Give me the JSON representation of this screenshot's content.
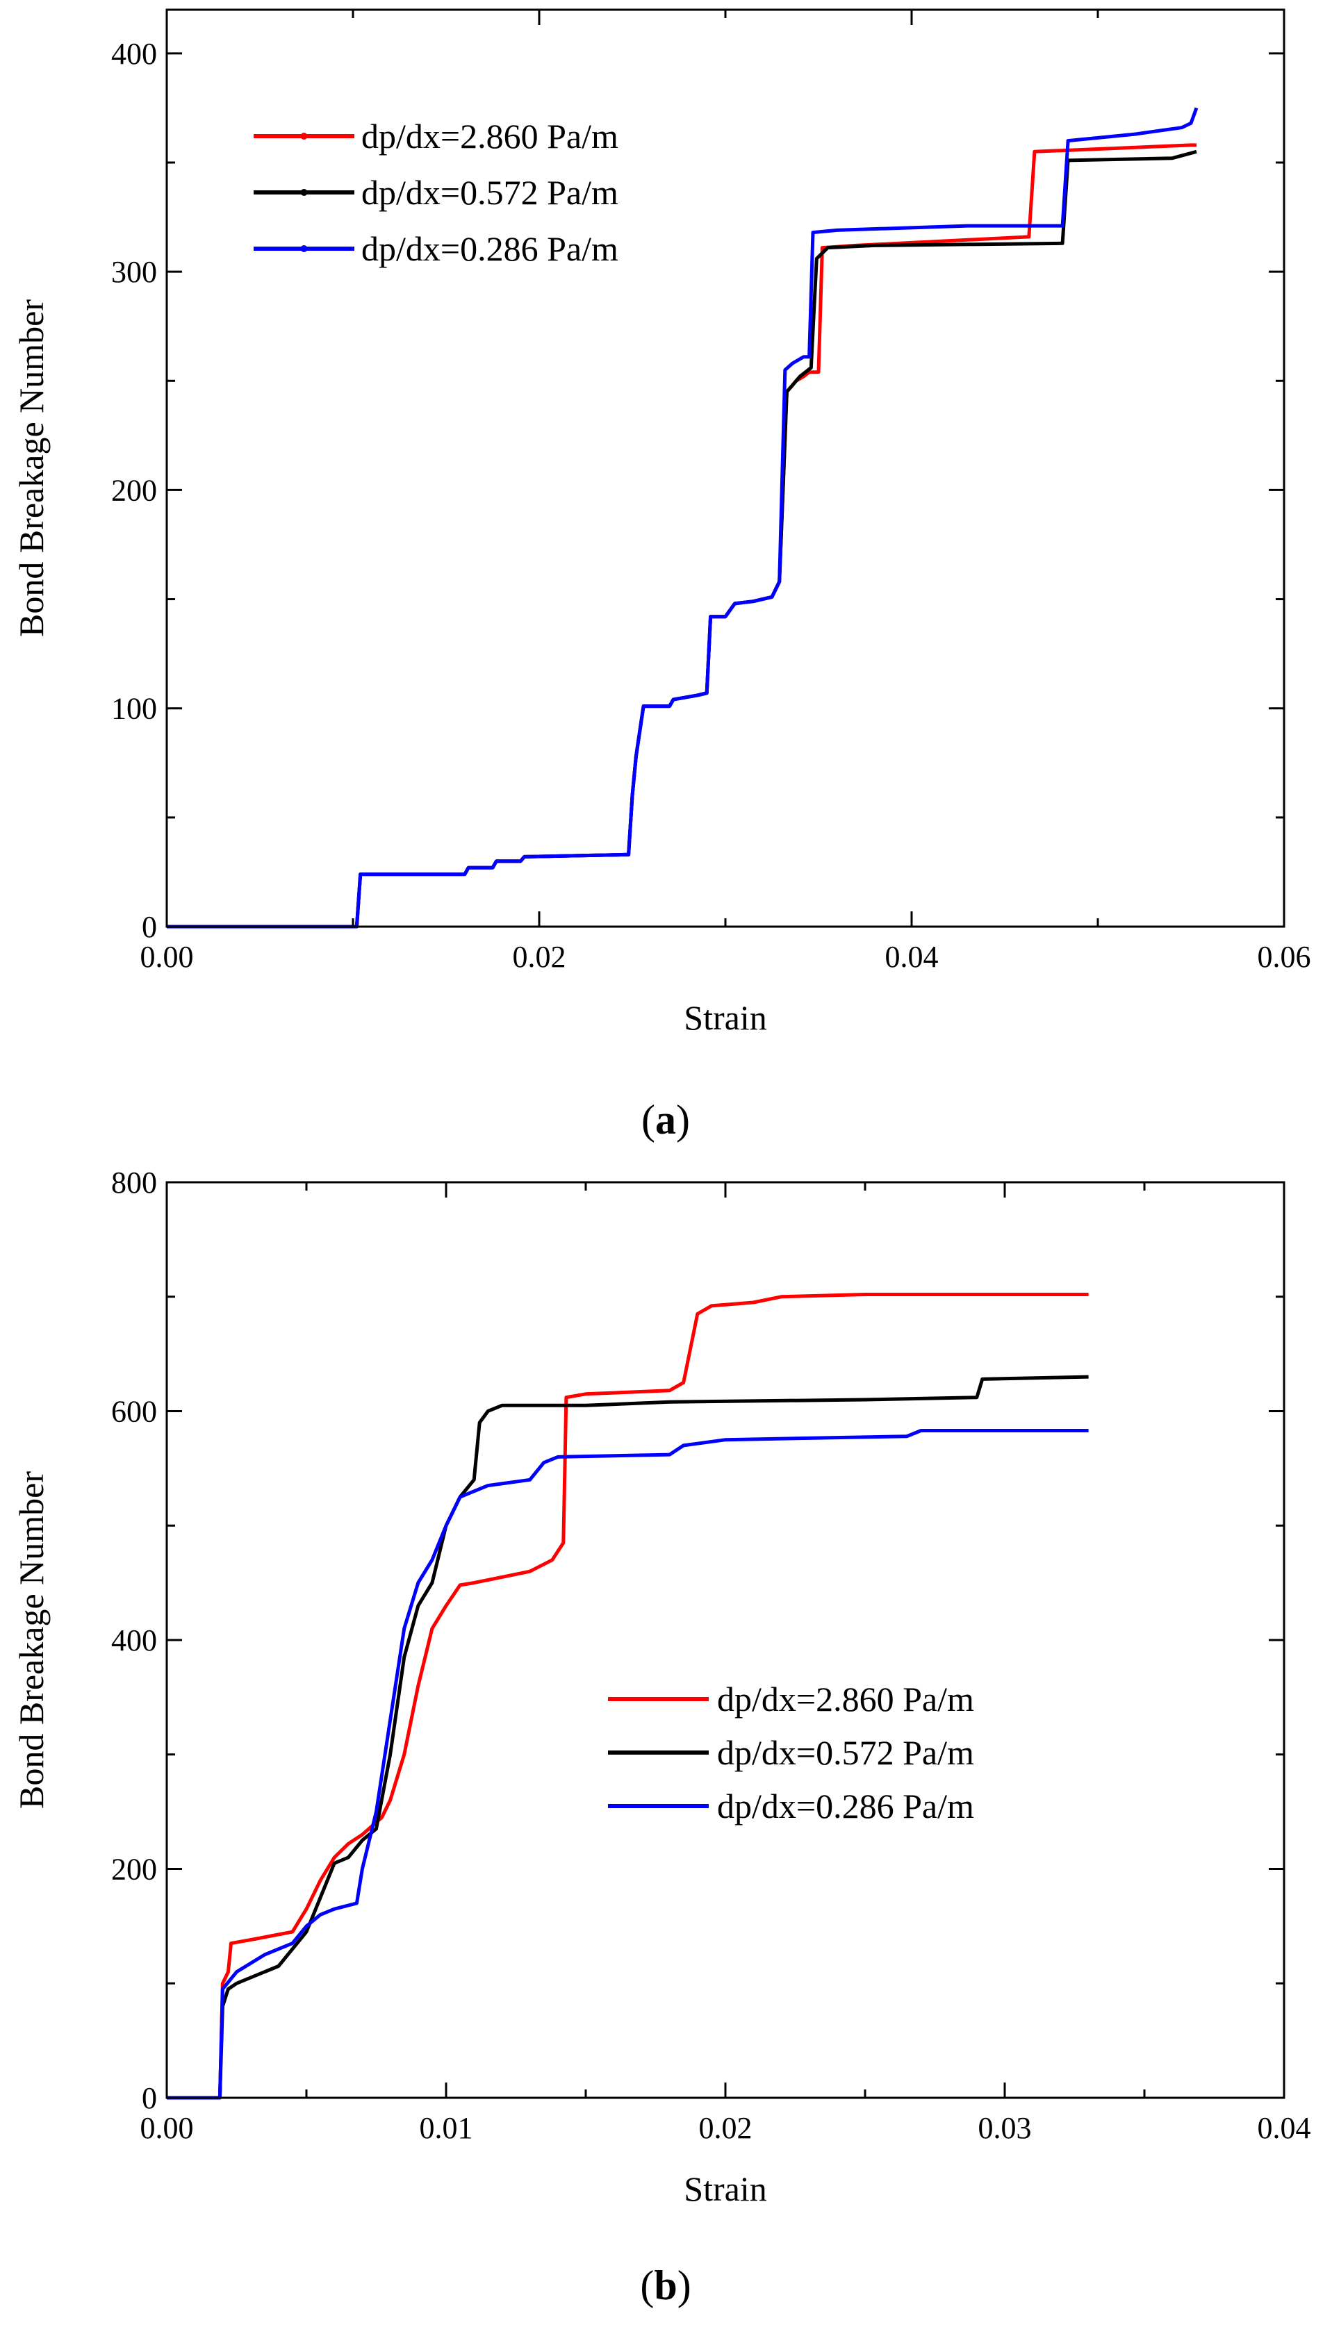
{
  "chart_data": [
    {
      "type": "line",
      "caption": "a",
      "xlabel": "Strain",
      "ylabel": "Bond Breakage Number",
      "xlim": [
        0,
        0.06
      ],
      "ylim": [
        0,
        420
      ],
      "xticks": [
        0,
        0.02,
        0.04,
        0.06
      ],
      "xtick_labels": [
        "0.00",
        "0.02",
        "0.04",
        "0.06"
      ],
      "yticks": [
        0,
        100,
        200,
        300,
        400
      ],
      "ytick_labels": [
        "0",
        "100",
        "200",
        "300",
        "400"
      ],
      "legend_position": "top-left",
      "series": [
        {
          "name": "dp/dx=2.860 Pa/m",
          "color": "#ff0000",
          "points": [
            [
              0,
              0
            ],
            [
              0.0102,
              0
            ],
            [
              0.0104,
              24
            ],
            [
              0.016,
              24
            ],
            [
              0.0162,
              27
            ],
            [
              0.0175,
              27
            ],
            [
              0.0177,
              30
            ],
            [
              0.019,
              30
            ],
            [
              0.0192,
              32
            ],
            [
              0.0248,
              33
            ],
            [
              0.025,
              60
            ],
            [
              0.0252,
              78
            ],
            [
              0.0256,
              101
            ],
            [
              0.027,
              101
            ],
            [
              0.0272,
              104
            ],
            [
              0.0285,
              106
            ],
            [
              0.029,
              107
            ],
            [
              0.0292,
              142
            ],
            [
              0.03,
              142
            ],
            [
              0.0305,
              148
            ],
            [
              0.0315,
              149
            ],
            [
              0.0325,
              151
            ],
            [
              0.0329,
              158
            ],
            [
              0.0333,
              245
            ],
            [
              0.0338,
              250
            ],
            [
              0.0342,
              252
            ],
            [
              0.0345,
              254
            ],
            [
              0.035,
              254
            ],
            [
              0.0352,
              311
            ],
            [
              0.037,
              312
            ],
            [
              0.0463,
              316
            ],
            [
              0.0466,
              355
            ],
            [
              0.055,
              358
            ],
            [
              0.0553,
              358
            ]
          ]
        },
        {
          "name": "dp/dx=0.572 Pa/m",
          "color": "#000000",
          "points": [
            [
              0,
              0
            ],
            [
              0.0102,
              0
            ],
            [
              0.0104,
              24
            ],
            [
              0.016,
              24
            ],
            [
              0.0162,
              27
            ],
            [
              0.0175,
              27
            ],
            [
              0.0177,
              30
            ],
            [
              0.019,
              30
            ],
            [
              0.0192,
              32
            ],
            [
              0.0248,
              33
            ],
            [
              0.025,
              60
            ],
            [
              0.0252,
              78
            ],
            [
              0.0256,
              101
            ],
            [
              0.027,
              101
            ],
            [
              0.0272,
              104
            ],
            [
              0.0285,
              106
            ],
            [
              0.029,
              107
            ],
            [
              0.0292,
              142
            ],
            [
              0.03,
              142
            ],
            [
              0.0305,
              148
            ],
            [
              0.0315,
              149
            ],
            [
              0.0325,
              151
            ],
            [
              0.0329,
              158
            ],
            [
              0.0333,
              245
            ],
            [
              0.0336,
              248
            ],
            [
              0.034,
              252
            ],
            [
              0.0346,
              256
            ],
            [
              0.0349,
              306
            ],
            [
              0.0355,
              311
            ],
            [
              0.038,
              312
            ],
            [
              0.0481,
              313
            ],
            [
              0.0484,
              351
            ],
            [
              0.054,
              352
            ],
            [
              0.0553,
              355
            ]
          ]
        },
        {
          "name": "dp/dx=0.286 Pa/m",
          "color": "#0000ff",
          "points": [
            [
              0,
              0
            ],
            [
              0.0102,
              0
            ],
            [
              0.0104,
              24
            ],
            [
              0.016,
              24
            ],
            [
              0.0162,
              27
            ],
            [
              0.0175,
              27
            ],
            [
              0.0177,
              30
            ],
            [
              0.019,
              30
            ],
            [
              0.0192,
              32
            ],
            [
              0.0248,
              33
            ],
            [
              0.025,
              60
            ],
            [
              0.0252,
              78
            ],
            [
              0.0256,
              101
            ],
            [
              0.027,
              101
            ],
            [
              0.0272,
              104
            ],
            [
              0.0285,
              106
            ],
            [
              0.029,
              107
            ],
            [
              0.0292,
              142
            ],
            [
              0.03,
              142
            ],
            [
              0.0305,
              148
            ],
            [
              0.0315,
              149
            ],
            [
              0.0325,
              151
            ],
            [
              0.0329,
              158
            ],
            [
              0.0332,
              255
            ],
            [
              0.0336,
              258
            ],
            [
              0.0342,
              261
            ],
            [
              0.0345,
              261
            ],
            [
              0.0347,
              318
            ],
            [
              0.036,
              319
            ],
            [
              0.043,
              321
            ],
            [
              0.0481,
              321
            ],
            [
              0.0484,
              360
            ],
            [
              0.052,
              363
            ],
            [
              0.0545,
              366
            ],
            [
              0.055,
              368
            ],
            [
              0.0553,
              375
            ]
          ]
        }
      ]
    },
    {
      "type": "line",
      "caption": "b",
      "xlabel": "Strain",
      "ylabel": "Bond Breakage Number",
      "xlim": [
        0,
        0.04
      ],
      "ylim": [
        0,
        800
      ],
      "xticks": [
        0,
        0.01,
        0.02,
        0.03,
        0.04
      ],
      "xtick_labels": [
        "0.00",
        "0.01",
        "0.02",
        "0.03",
        "0.04"
      ],
      "yticks": [
        0,
        200,
        400,
        600,
        800
      ],
      "ytick_labels": [
        "0",
        "200",
        "400",
        "600",
        "800"
      ],
      "legend_position": "center-right",
      "series": [
        {
          "name": "dp/dx=2.860 Pa/m",
          "color": "#ff0000",
          "points": [
            [
              0,
              0
            ],
            [
              0.0019,
              0
            ],
            [
              0.002,
              100
            ],
            [
              0.0022,
              110
            ],
            [
              0.0023,
              135
            ],
            [
              0.003,
              138
            ],
            [
              0.0045,
              145
            ],
            [
              0.005,
              165
            ],
            [
              0.0055,
              190
            ],
            [
              0.006,
              210
            ],
            [
              0.0065,
              222
            ],
            [
              0.007,
              230
            ],
            [
              0.0077,
              245
            ],
            [
              0.008,
              260
            ],
            [
              0.0085,
              300
            ],
            [
              0.009,
              360
            ],
            [
              0.0095,
              410
            ],
            [
              0.01,
              430
            ],
            [
              0.0105,
              448
            ],
            [
              0.011,
              450
            ],
            [
              0.012,
              455
            ],
            [
              0.013,
              460
            ],
            [
              0.0138,
              470
            ],
            [
              0.0142,
              485
            ],
            [
              0.0143,
              612
            ],
            [
              0.015,
              615
            ],
            [
              0.018,
              618
            ],
            [
              0.0185,
              625
            ],
            [
              0.019,
              685
            ],
            [
              0.0195,
              692
            ],
            [
              0.021,
              695
            ],
            [
              0.022,
              700
            ],
            [
              0.025,
              702
            ],
            [
              0.033,
              702
            ]
          ]
        },
        {
          "name": "dp/dx=0.572 Pa/m",
          "color": "#000000",
          "points": [
            [
              0,
              0
            ],
            [
              0.0019,
              0
            ],
            [
              0.002,
              80
            ],
            [
              0.0022,
              95
            ],
            [
              0.0025,
              100
            ],
            [
              0.003,
              105
            ],
            [
              0.004,
              115
            ],
            [
              0.005,
              145
            ],
            [
              0.0055,
              175
            ],
            [
              0.006,
              205
            ],
            [
              0.0065,
              210
            ],
            [
              0.007,
              225
            ],
            [
              0.0075,
              235
            ],
            [
              0.008,
              300
            ],
            [
              0.0085,
              385
            ],
            [
              0.009,
              430
            ],
            [
              0.0095,
              450
            ],
            [
              0.01,
              500
            ],
            [
              0.0105,
              525
            ],
            [
              0.011,
              540
            ],
            [
              0.0112,
              590
            ],
            [
              0.0115,
              600
            ],
            [
              0.012,
              605
            ],
            [
              0.015,
              605
            ],
            [
              0.018,
              608
            ],
            [
              0.025,
              610
            ],
            [
              0.029,
              612
            ],
            [
              0.0292,
              628
            ],
            [
              0.033,
              630
            ]
          ]
        },
        {
          "name": "dp/dx=0.286 Pa/m",
          "color": "#0000ff",
          "points": [
            [
              0,
              0
            ],
            [
              0.0019,
              0
            ],
            [
              0.002,
              95
            ],
            [
              0.0025,
              110
            ],
            [
              0.0035,
              125
            ],
            [
              0.0045,
              135
            ],
            [
              0.005,
              150
            ],
            [
              0.0055,
              160
            ],
            [
              0.006,
              165
            ],
            [
              0.0068,
              170
            ],
            [
              0.007,
              200
            ],
            [
              0.0075,
              250
            ],
            [
              0.008,
              330
            ],
            [
              0.0085,
              410
            ],
            [
              0.009,
              450
            ],
            [
              0.0095,
              470
            ],
            [
              0.01,
              500
            ],
            [
              0.0105,
              525
            ],
            [
              0.0115,
              535
            ],
            [
              0.013,
              540
            ],
            [
              0.0135,
              555
            ],
            [
              0.014,
              560
            ],
            [
              0.018,
              562
            ],
            [
              0.0185,
              570
            ],
            [
              0.02,
              575
            ],
            [
              0.0265,
              578
            ],
            [
              0.027,
              583
            ],
            [
              0.033,
              583
            ]
          ]
        }
      ]
    }
  ]
}
